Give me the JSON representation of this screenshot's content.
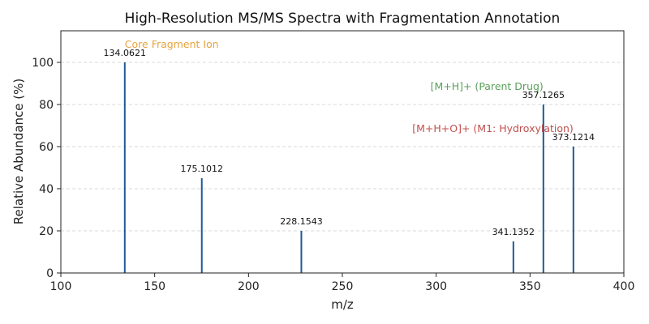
{
  "chart_data": {
    "type": "bar",
    "title": "High-Resolution MS/MS Spectra with Fragmentation Annotation",
    "xlabel": "m/z",
    "ylabel": "Relative Abundance (%)",
    "xlim": [
      100,
      400
    ],
    "ylim": [
      0,
      115
    ],
    "xticks": [
      100,
      150,
      200,
      250,
      300,
      350,
      400
    ],
    "yticks": [
      0,
      20,
      40,
      60,
      80,
      100
    ],
    "grid": "horizontal-dashed",
    "bar_color": "#1f5a96",
    "peaks": [
      {
        "mz": 134.0621,
        "intensity": 100,
        "label": "134.0621"
      },
      {
        "mz": 175.1012,
        "intensity": 45,
        "label": "175.1012"
      },
      {
        "mz": 228.1543,
        "intensity": 20,
        "label": "228.1543"
      },
      {
        "mz": 341.1352,
        "intensity": 15,
        "label": "341.1352"
      },
      {
        "mz": 357.1265,
        "intensity": 80,
        "label": "357.1265"
      },
      {
        "mz": 373.1214,
        "intensity": 60,
        "label": "373.1214"
      }
    ],
    "annotations": [
      {
        "text": "Core Fragment Ion",
        "mz": 134.0621,
        "y": 107,
        "color": "#e8a33d",
        "anchor": "start"
      },
      {
        "text": "[M+H]+ (Parent Drug)",
        "mz": 357.1265,
        "y": 87,
        "color": "#5aa05a",
        "anchor": "end"
      },
      {
        "text": "[M+H+O]+ (M1: Hydroxylation)",
        "mz": 373.1214,
        "y": 67,
        "color": "#c0504d",
        "anchor": "end"
      }
    ]
  }
}
